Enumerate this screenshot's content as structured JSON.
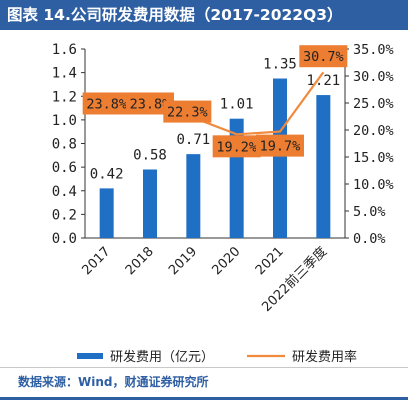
{
  "figure": {
    "title": "图表 14.公司研发费用数据（2017-2022Q3）",
    "source": "数据来源：Wind，财通证券研究所"
  },
  "colors": {
    "title_bg": "#2e5fa3",
    "bar": "#1f6fc5",
    "line": "#f08a3c",
    "label_box": "#ec7d31",
    "source_text": "#2e5fa3"
  },
  "chart_data": {
    "type": "bar",
    "categories": [
      "2017",
      "2018",
      "2019",
      "2020",
      "2021",
      "2022前三季度"
    ],
    "series": [
      {
        "name": "研发费用（亿元）",
        "type": "bar",
        "axis": "left",
        "values": [
          0.42,
          0.58,
          0.71,
          1.01,
          1.35,
          1.21
        ],
        "labels": [
          "0.42",
          "0.58",
          "0.71",
          "1.01",
          "1.35",
          "1.21"
        ]
      },
      {
        "name": "研发费用率",
        "type": "line",
        "axis": "right",
        "values": [
          23.8,
          23.8,
          22.3,
          19.2,
          19.7,
          30.7
        ],
        "labels": [
          "23.8%",
          "23.8%",
          "22.3%",
          "19.2%",
          "19.7%",
          "30.7%"
        ]
      }
    ],
    "y_left": {
      "ylim": [
        0,
        1.6
      ],
      "ticks": [
        "0.0",
        "0.2",
        "0.4",
        "0.6",
        "0.8",
        "1.0",
        "1.2",
        "1.4",
        "1.6"
      ]
    },
    "y_right": {
      "ylim": [
        0,
        35
      ],
      "ticks": [
        "0.0%",
        "5.0%",
        "10.0%",
        "15.0%",
        "20.0%",
        "25.0%",
        "30.0%",
        "35.0%"
      ]
    },
    "grid": false,
    "legend_position": "bottom"
  }
}
